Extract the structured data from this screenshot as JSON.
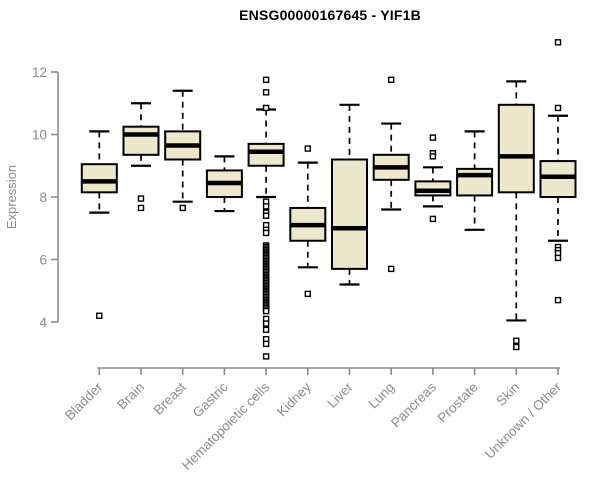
{
  "chart_data": {
    "type": "boxplot",
    "title": "ENSG00000167645 - YIF1B",
    "xlabel": "",
    "ylabel": "Expression",
    "ylim": [
      4,
      12
    ],
    "yticks": [
      4,
      6,
      8,
      10,
      12
    ],
    "grid": false,
    "legend": "none",
    "categories": [
      "Bladder",
      "Brain",
      "Breast",
      "Gastric",
      "Hematopoietic cells",
      "Kidney",
      "Liver",
      "Lung",
      "Pancreas",
      "Prostate",
      "Skin",
      "Unknown / Other"
    ],
    "series": [
      {
        "category": "Bladder",
        "whisker_low": 7.5,
        "q1": 8.15,
        "median": 8.5,
        "q3": 9.05,
        "whisker_high": 10.1,
        "outliers": [
          4.2
        ]
      },
      {
        "category": "Brain",
        "whisker_low": 9.0,
        "q1": 9.35,
        "median": 10.0,
        "q3": 10.25,
        "whisker_high": 11.0,
        "outliers": [
          7.95,
          7.65
        ]
      },
      {
        "category": "Breast",
        "whisker_low": 7.85,
        "q1": 9.2,
        "median": 9.65,
        "q3": 10.1,
        "whisker_high": 11.4,
        "outliers": [
          7.65
        ]
      },
      {
        "category": "Gastric",
        "whisker_low": 7.55,
        "q1": 8.0,
        "median": 8.45,
        "q3": 8.85,
        "whisker_high": 9.3,
        "outliers": []
      },
      {
        "category": "Hematopoietic cells",
        "whisker_low": 8.0,
        "q1": 9.0,
        "median": 9.45,
        "q3": 9.7,
        "whisker_high": 10.8,
        "outliers": [
          11.75,
          11.35,
          10.85,
          7.85,
          7.7,
          7.5,
          7.4,
          7.1,
          6.95,
          6.85,
          6.45,
          6.4,
          6.35,
          6.3,
          6.25,
          6.2,
          6.15,
          6.1,
          6.05,
          6.0,
          5.95,
          5.9,
          5.85,
          5.8,
          5.75,
          5.7,
          5.65,
          5.6,
          5.55,
          5.5,
          5.45,
          5.4,
          5.35,
          5.3,
          5.25,
          5.2,
          5.15,
          5.1,
          5.05,
          5.0,
          4.95,
          4.9,
          4.85,
          4.8,
          4.75,
          4.7,
          4.65,
          4.6,
          4.55,
          4.5,
          4.45,
          4.4,
          4.35,
          4.1,
          3.95,
          3.75,
          3.45,
          3.3,
          2.9
        ]
      },
      {
        "category": "Kidney",
        "whisker_low": 5.75,
        "q1": 6.6,
        "median": 7.1,
        "q3": 7.65,
        "whisker_high": 9.1,
        "outliers": [
          9.55,
          4.9
        ]
      },
      {
        "category": "Liver",
        "whisker_low": 5.2,
        "q1": 5.7,
        "median": 7.0,
        "q3": 9.2,
        "whisker_high": 10.95,
        "outliers": []
      },
      {
        "category": "Lung",
        "whisker_low": 7.6,
        "q1": 8.55,
        "median": 8.95,
        "q3": 9.35,
        "whisker_high": 10.35,
        "outliers": [
          11.75,
          5.7
        ]
      },
      {
        "category": "Pancreas",
        "whisker_low": 7.7,
        "q1": 8.05,
        "median": 8.2,
        "q3": 8.5,
        "whisker_high": 8.95,
        "outliers": [
          9.9,
          9.4,
          9.3,
          7.3
        ]
      },
      {
        "category": "Prostate",
        "whisker_low": 6.95,
        "q1": 8.05,
        "median": 8.7,
        "q3": 8.9,
        "whisker_high": 10.1,
        "outliers": []
      },
      {
        "category": "Skin",
        "whisker_low": 4.05,
        "q1": 8.15,
        "median": 9.3,
        "q3": 10.95,
        "whisker_high": 11.7,
        "outliers": [
          3.4,
          3.2
        ]
      },
      {
        "category": "Unknown / Other",
        "whisker_low": 6.6,
        "q1": 8.0,
        "median": 8.65,
        "q3": 9.15,
        "whisker_high": 10.6,
        "outliers": [
          12.95,
          10.85,
          6.4,
          6.3,
          6.2,
          6.05,
          4.7
        ]
      }
    ],
    "colors": {
      "box_fill": "#EDE8CC",
      "box_stroke": "#000000",
      "median": "#000000",
      "outlier_fill": "#FFFFFF",
      "axis": "#8C8C8C",
      "axis_text": "#8C8C8C",
      "title": "#000000",
      "background": "#FFFFFF"
    }
  }
}
